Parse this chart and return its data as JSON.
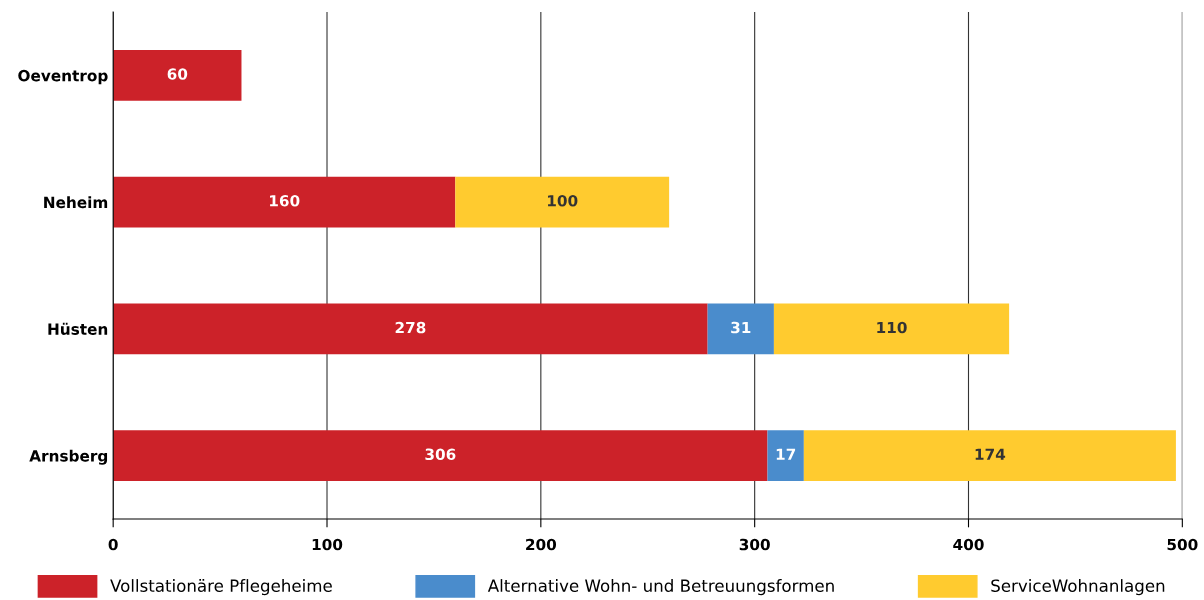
{
  "chart_data": {
    "type": "bar",
    "orientation": "horizontal",
    "stacked": true,
    "categories": [
      "Oeventrop",
      "Neheim",
      "Hüsten",
      "Arnsberg"
    ],
    "series": [
      {
        "name": "Vollstationäre Pflegeheime",
        "color": "#cc2229",
        "values": [
          60,
          160,
          278,
          306
        ]
      },
      {
        "name": "Alternative Wohn- und Betreuungsformen",
        "color": "#4a8ccc",
        "values": [
          null,
          null,
          31,
          17
        ]
      },
      {
        "name": "ServiceWohnanlagen",
        "color": "#ffcb2f",
        "values": [
          null,
          100,
          110,
          174
        ]
      }
    ],
    "xlim": [
      0,
      500
    ],
    "xticks": [
      0,
      100,
      200,
      300,
      400,
      500
    ],
    "grid": "x",
    "legend": "bottom",
    "data_labels": true
  }
}
